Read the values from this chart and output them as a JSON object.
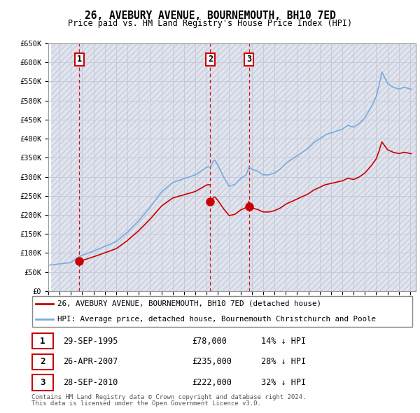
{
  "title": "26, AVEBURY AVENUE, BOURNEMOUTH, BH10 7ED",
  "subtitle": "Price paid vs. HM Land Registry's House Price Index (HPI)",
  "ylabel_ticks": [
    "£0",
    "£50K",
    "£100K",
    "£150K",
    "£200K",
    "£250K",
    "£300K",
    "£350K",
    "£400K",
    "£450K",
    "£500K",
    "£550K",
    "£600K",
    "£650K"
  ],
  "ylim": [
    0,
    650000
  ],
  "ytick_vals": [
    0,
    50000,
    100000,
    150000,
    200000,
    250000,
    300000,
    350000,
    400000,
    450000,
    500000,
    550000,
    600000,
    650000
  ],
  "sale_prices": [
    78000,
    235000,
    222000
  ],
  "sale_labels": [
    "1",
    "2",
    "3"
  ],
  "sale_date_strs": [
    "29-SEP-1995",
    "26-APR-2007",
    "28-SEP-2010"
  ],
  "sale_price_strs": [
    "£78,000",
    "£235,000",
    "£222,000"
  ],
  "sale_hpi_strs": [
    "14% ↓ HPI",
    "28% ↓ HPI",
    "32% ↓ HPI"
  ],
  "hpi_color": "#7aaadd",
  "sale_color": "#cc0000",
  "grid_color": "#c8c8dc",
  "legend_label_sale": "26, AVEBURY AVENUE, BOURNEMOUTH, BH10 7ED (detached house)",
  "legend_label_hpi": "HPI: Average price, detached house, Bournemouth Christchurch and Poole",
  "footnote1": "Contains HM Land Registry data © Crown copyright and database right 2024.",
  "footnote2": "This data is licensed under the Open Government Licence v3.0.",
  "xlim_start": 1993.25,
  "xlim_end": 2025.5,
  "sale_years": [
    1995.75,
    2007.33,
    2010.75
  ]
}
